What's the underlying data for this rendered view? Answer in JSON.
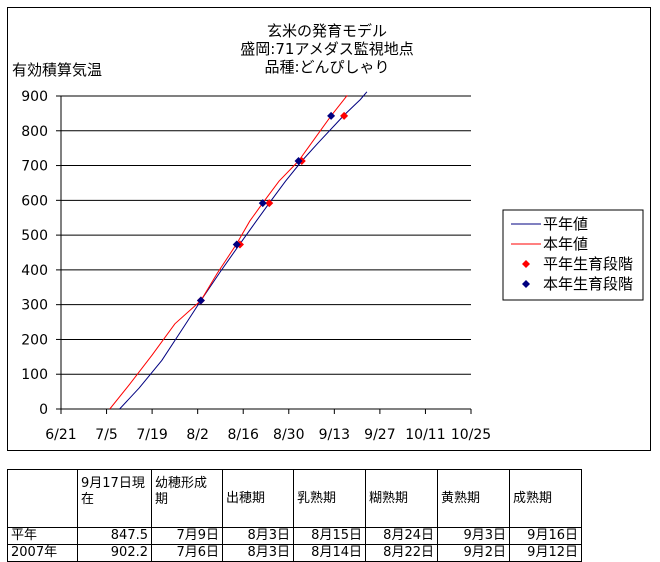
{
  "chart_data": {
    "type": "line",
    "title": [
      "玄米の発育モデル",
      "盛岡:71アメダス監視地点",
      "品種:どんぴしゃり"
    ],
    "ylabel": "有効積算気温",
    "ylim": [
      0,
      900
    ],
    "yticks": [
      0,
      100,
      200,
      300,
      400,
      500,
      600,
      700,
      800,
      900
    ],
    "xlim": [
      "6/21",
      "10/25"
    ],
    "xticks": [
      "6/21",
      "7/5",
      "7/19",
      "8/2",
      "8/16",
      "8/30",
      "9/13",
      "9/27",
      "10/11",
      "10/25"
    ],
    "grid": "horizontal",
    "legend": "right",
    "series": [
      {
        "name": "平年値",
        "kind": "line",
        "color": "#000080",
        "x": [
          "7/9",
          "7/15",
          "7/22",
          "7/29",
          "8/3",
          "8/9",
          "8/15",
          "8/20",
          "8/24",
          "8/29",
          "9/3",
          "9/8",
          "9/13",
          "9/16",
          "9/21",
          "9/23"
        ],
        "y": [
          0,
          60,
          140,
          240,
          312,
          395,
          475,
          540,
          592,
          655,
          713,
          765,
          815,
          845,
          890,
          912
        ]
      },
      {
        "name": "本年値",
        "kind": "line",
        "color": "#ff0000",
        "x": [
          "7/6",
          "7/12",
          "7/19",
          "7/26",
          "8/3",
          "8/8",
          "8/14",
          "8/18",
          "8/22",
          "8/27",
          "9/2",
          "9/7",
          "9/12",
          "9/17"
        ],
        "y": [
          0,
          70,
          155,
          245,
          312,
          390,
          475,
          540,
          592,
          655,
          713,
          778,
          843,
          902
        ]
      },
      {
        "name": "平年生育段階",
        "kind": "points",
        "color": "#ff0000",
        "x": [
          "8/3",
          "8/15",
          "8/24",
          "9/3",
          "9/16"
        ],
        "y": [
          312,
          473,
          592,
          713,
          843
        ]
      },
      {
        "name": "本年生育段階",
        "kind": "points",
        "color": "#000080",
        "x": [
          "8/3",
          "8/14",
          "8/22",
          "9/2",
          "9/12"
        ],
        "y": [
          312,
          473,
          592,
          713,
          843
        ]
      }
    ]
  },
  "table": {
    "headers": [
      "",
      "9月17日現在",
      "幼穂形成期",
      "出穂期",
      "乳熟期",
      "糊熟期",
      "黄熟期",
      "成熟期"
    ],
    "rows": [
      {
        "label": "平年",
        "cells": [
          "847.5",
          "7月9日",
          "8月3日",
          "8月15日",
          "8月24日",
          "9月3日",
          "9月16日"
        ]
      },
      {
        "label": "2007年",
        "cells": [
          "902.2",
          "7月6日",
          "8月3日",
          "8月14日",
          "8月22日",
          "9月2日",
          "9月12日"
        ]
      }
    ]
  }
}
